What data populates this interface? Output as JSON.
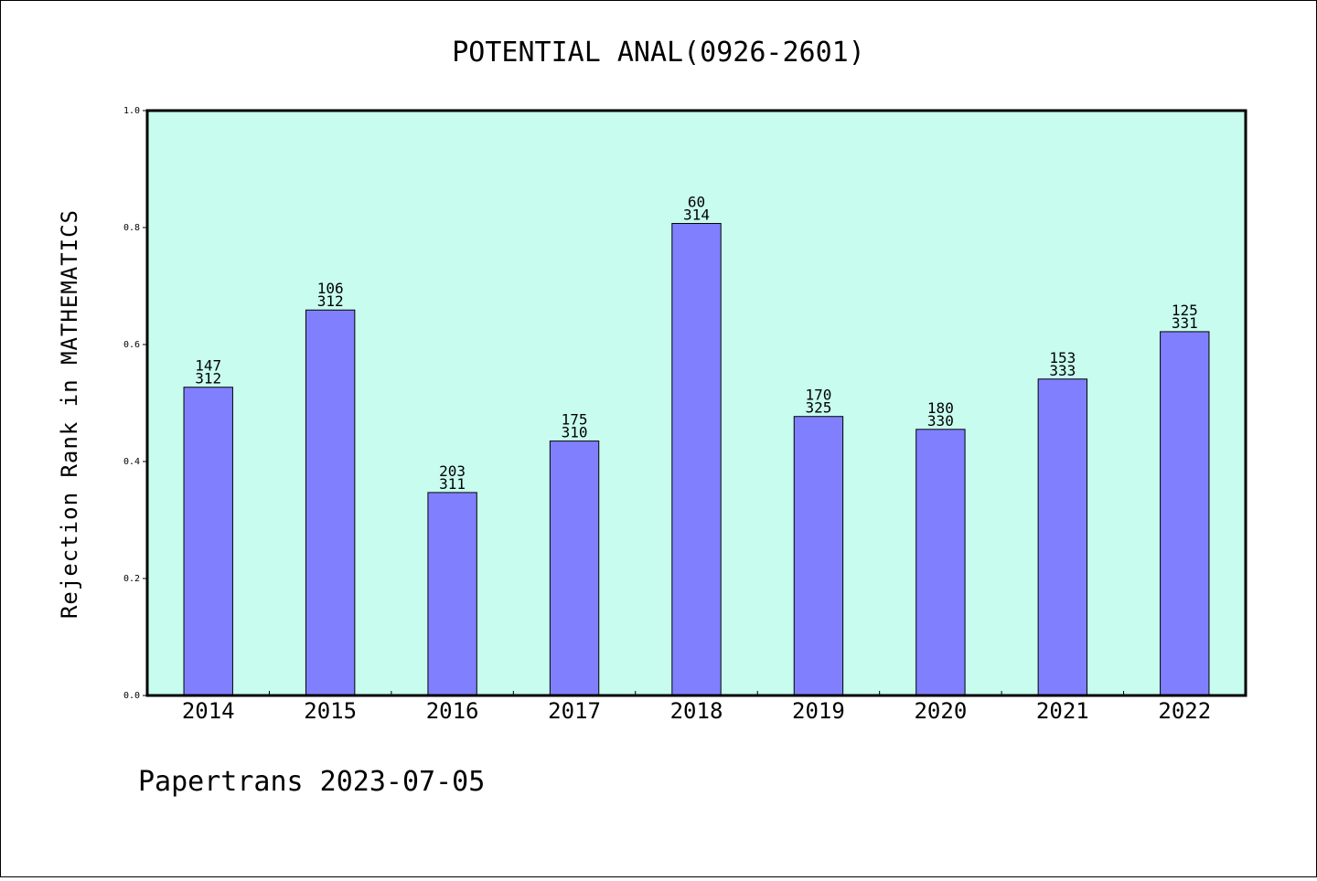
{
  "chart_data": {
    "type": "bar",
    "title": "POTENTIAL ANAL(0926-2601)",
    "xlabel": "",
    "ylabel": "Rejection Rank in MATHEMATICS",
    "ylim": [
      0,
      1.0
    ],
    "yticks": [
      "0.0",
      "0.2",
      "0.4",
      "0.6",
      "0.8",
      "1.0"
    ],
    "categories": [
      "2014",
      "2015",
      "2016",
      "2017",
      "2018",
      "2019",
      "2020",
      "2021",
      "2022"
    ],
    "values": [
      0.527,
      0.659,
      0.347,
      0.435,
      0.807,
      0.477,
      0.455,
      0.541,
      0.622
    ],
    "rank": [
      "147",
      "106",
      "203",
      "175",
      "60",
      "170",
      "180",
      "153",
      "125"
    ],
    "total": [
      "312",
      "312",
      "311",
      "310",
      "314",
      "325",
      "330",
      "333",
      "331"
    ],
    "grid": false,
    "legend": "none"
  },
  "colors": {
    "plot_background": "#c8fcee",
    "bar_fill": "#8080ff",
    "bar_stroke": "#000000"
  },
  "footer": "Papertrans 2023-07-05"
}
